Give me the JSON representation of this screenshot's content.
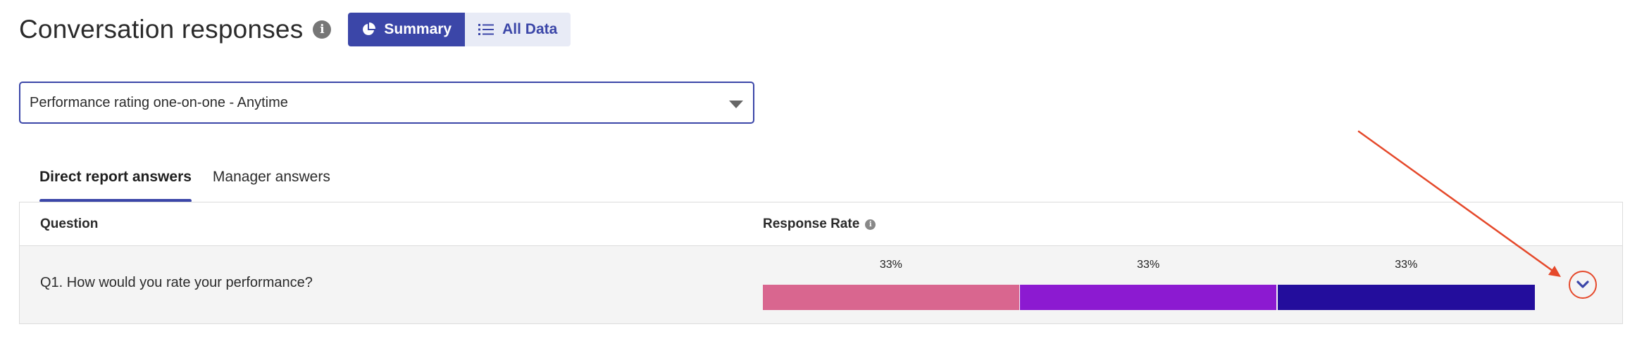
{
  "header": {
    "title": "Conversation responses",
    "info_icon": "info-icon",
    "toggle": [
      {
        "label": "Summary",
        "icon": "pie-chart-icon",
        "active": true
      },
      {
        "label": "All Data",
        "icon": "list-icon",
        "active": false
      }
    ]
  },
  "filter": {
    "selected": "Performance rating one-on-one - Anytime",
    "icon": "caret-down-icon"
  },
  "tabs": [
    {
      "label": "Direct report answers",
      "active": true
    },
    {
      "label": "Manager answers",
      "active": false
    }
  ],
  "table": {
    "columns": {
      "question": "Question",
      "response_rate": "Response Rate"
    },
    "rows": [
      {
        "question": "Q1. How would you rate your performance?",
        "segments": [
          {
            "label": "33%",
            "value": 0.3333,
            "color": "#d9668f"
          },
          {
            "label": "33%",
            "value": 0.3333,
            "color": "#8c1ad1"
          },
          {
            "label": "33%",
            "value": 0.3334,
            "color": "#230d9c"
          }
        ],
        "expand_icon": "chevron-down-icon"
      }
    ]
  },
  "colors": {
    "accent": "#3b46a8",
    "annotation": "#e5492b"
  }
}
